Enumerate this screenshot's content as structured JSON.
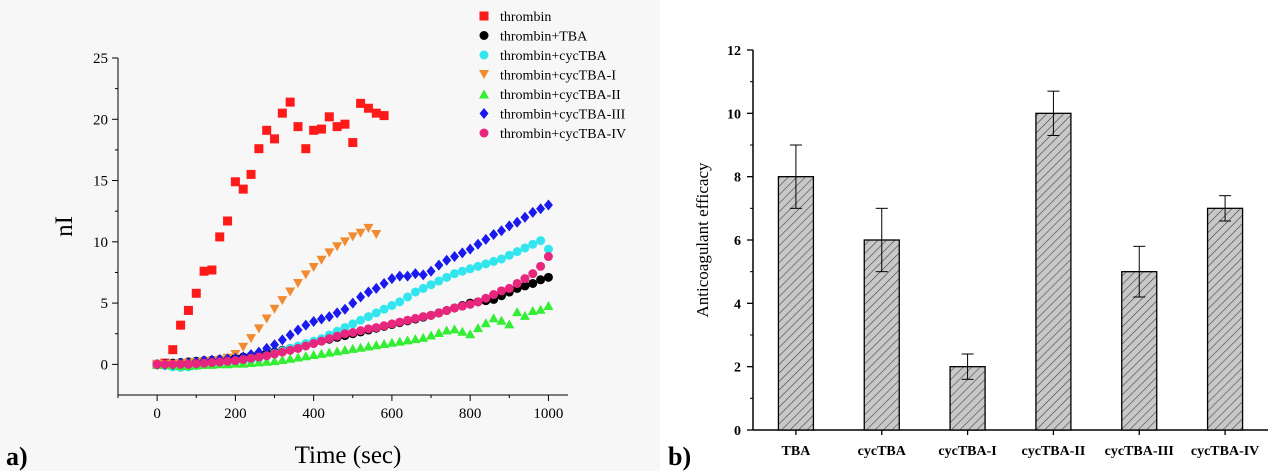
{
  "panel_labels": {
    "a": "a)",
    "b": "b)"
  },
  "chart_data": [
    {
      "type": "scatter",
      "panel": "a)",
      "xlabel": "Time (sec)",
      "ylabel": "nI",
      "xlim": [
        -100,
        1050
      ],
      "ylim": [
        -2.5,
        25
      ],
      "xticks": [
        0,
        200,
        400,
        600,
        800,
        1000
      ],
      "yticks": [
        0,
        5,
        10,
        15,
        20,
        25
      ],
      "legend_position": "top-right",
      "series": [
        {
          "name": "thrombin",
          "marker": "square",
          "color": "#ff1a1a",
          "x": [
            0,
            20,
            40,
            60,
            80,
            100,
            120,
            140,
            160,
            180,
            200,
            220,
            240,
            260,
            280,
            300,
            320,
            340,
            360,
            380,
            400,
            420,
            440,
            460,
            480,
            500,
            520,
            540,
            560,
            580
          ],
          "y": [
            0,
            0.1,
            1.2,
            3.2,
            4.4,
            5.8,
            7.6,
            7.7,
            10.4,
            11.7,
            14.9,
            14.3,
            15.5,
            17.6,
            19.1,
            18.4,
            20.5,
            21.4,
            19.4,
            17.6,
            19.1,
            19.2,
            20.2,
            19.4,
            19.6,
            18.1,
            21.3,
            20.9,
            20.5,
            20.3
          ]
        },
        {
          "name": "thrombin+TBA",
          "marker": "circle",
          "color": "#000000",
          "x": [
            0,
            20,
            40,
            60,
            80,
            100,
            120,
            140,
            160,
            180,
            200,
            220,
            240,
            260,
            280,
            300,
            320,
            340,
            360,
            380,
            400,
            420,
            440,
            460,
            480,
            500,
            520,
            540,
            560,
            580,
            600,
            620,
            640,
            660,
            680,
            700,
            720,
            740,
            760,
            780,
            800,
            820,
            840,
            860,
            880,
            900,
            920,
            940,
            960,
            980,
            1000
          ],
          "y": [
            0,
            0.05,
            0.1,
            0.15,
            0.2,
            0.25,
            0.3,
            0.35,
            0.4,
            0.45,
            0.5,
            0.6,
            0.7,
            0.8,
            0.9,
            1.0,
            1.15,
            1.3,
            1.45,
            1.6,
            1.75,
            1.9,
            2.05,
            2.2,
            2.35,
            2.5,
            2.65,
            2.8,
            2.95,
            3.1,
            3.25,
            3.4,
            3.55,
            3.7,
            3.85,
            4.0,
            4.2,
            4.4,
            4.6,
            4.8,
            5.0,
            5.1,
            5.2,
            5.3,
            5.6,
            5.9,
            6.2,
            6.4,
            6.6,
            6.9,
            7.1
          ]
        },
        {
          "name": "thrombin+cycTBA",
          "marker": "circle",
          "color": "#33e6ee",
          "x": [
            0,
            20,
            40,
            60,
            80,
            100,
            120,
            140,
            160,
            180,
            200,
            220,
            240,
            260,
            280,
            300,
            320,
            340,
            360,
            380,
            400,
            420,
            440,
            460,
            480,
            500,
            520,
            540,
            560,
            580,
            600,
            620,
            640,
            660,
            680,
            700,
            720,
            740,
            760,
            780,
            800,
            820,
            840,
            860,
            880,
            900,
            920,
            940,
            960,
            980,
            1000
          ],
          "y": [
            0,
            -0.1,
            -0.2,
            -0.25,
            -0.2,
            -0.1,
            0,
            0.05,
            0.1,
            0.15,
            0.2,
            0.3,
            0.4,
            0.5,
            0.7,
            0.9,
            1.1,
            1.3,
            1.5,
            1.7,
            1.9,
            2.1,
            2.4,
            2.7,
            3.0,
            3.3,
            3.6,
            3.9,
            4.2,
            4.5,
            4.8,
            5.1,
            5.5,
            5.9,
            6.2,
            6.5,
            6.8,
            7.1,
            7.4,
            7.6,
            7.8,
            8.0,
            8.2,
            8.4,
            8.6,
            8.9,
            9.2,
            9.5,
            9.8,
            10.1,
            9.4
          ]
        },
        {
          "name": "thrombin+cycTBA-I",
          "marker": "triangle-down",
          "color": "#f28a30",
          "x": [
            0,
            20,
            40,
            60,
            80,
            100,
            120,
            140,
            160,
            180,
            200,
            220,
            240,
            260,
            280,
            300,
            320,
            340,
            360,
            380,
            400,
            420,
            440,
            460,
            480,
            500,
            520,
            540,
            560
          ],
          "y": [
            0,
            0,
            0,
            0.05,
            0.1,
            0.15,
            0.2,
            0.25,
            0.3,
            0.5,
            0.8,
            1.4,
            2.1,
            2.9,
            3.7,
            4.5,
            5.2,
            5.9,
            6.6,
            7.3,
            7.9,
            8.5,
            9.1,
            9.6,
            10.0,
            10.4,
            10.7,
            11.1,
            10.6
          ]
        },
        {
          "name": "thrombin+cycTBA-II",
          "marker": "triangle-up",
          "color": "#33ee33",
          "x": [
            0,
            20,
            40,
            60,
            80,
            100,
            120,
            140,
            160,
            180,
            200,
            220,
            240,
            260,
            280,
            300,
            320,
            340,
            360,
            380,
            400,
            420,
            440,
            460,
            480,
            500,
            520,
            540,
            560,
            580,
            600,
            620,
            640,
            660,
            680,
            700,
            720,
            740,
            760,
            780,
            800,
            820,
            840,
            860,
            880,
            900,
            920,
            940,
            960,
            980,
            1000
          ],
          "y": [
            0,
            0,
            -0.05,
            -0.1,
            -0.1,
            -0.05,
            0,
            0,
            0.05,
            0.05,
            0.1,
            0.1,
            0.15,
            0.2,
            0.25,
            0.3,
            0.4,
            0.5,
            0.6,
            0.7,
            0.8,
            0.9,
            1.0,
            1.1,
            1.2,
            1.3,
            1.4,
            1.5,
            1.6,
            1.7,
            1.8,
            1.9,
            2.0,
            2.1,
            2.2,
            2.4,
            2.6,
            2.8,
            2.9,
            2.7,
            2.5,
            3.0,
            3.4,
            3.8,
            3.6,
            3.3,
            4.3,
            4.0,
            4.4,
            4.5,
            4.8
          ]
        },
        {
          "name": "thrombin+cycTBA-III",
          "marker": "diamond",
          "color": "#1a1aee",
          "x": [
            0,
            20,
            40,
            60,
            80,
            100,
            120,
            140,
            160,
            180,
            200,
            220,
            240,
            260,
            280,
            300,
            320,
            340,
            360,
            380,
            400,
            420,
            440,
            460,
            480,
            500,
            520,
            540,
            560,
            580,
            600,
            620,
            640,
            660,
            680,
            700,
            720,
            740,
            760,
            780,
            800,
            820,
            840,
            860,
            880,
            900,
            920,
            940,
            960,
            980,
            1000
          ],
          "y": [
            0,
            0,
            0,
            0.1,
            0.1,
            0.2,
            0.3,
            0.35,
            0.4,
            0.45,
            0.5,
            0.6,
            0.8,
            1.0,
            1.3,
            1.6,
            2.0,
            2.4,
            2.8,
            3.2,
            3.5,
            3.7,
            3.9,
            4.2,
            4.5,
            5.0,
            5.5,
            5.9,
            6.2,
            6.6,
            7.0,
            7.2,
            7.2,
            7.4,
            7.3,
            7.6,
            8.1,
            8.5,
            8.8,
            9.1,
            9.4,
            9.8,
            10.2,
            10.6,
            10.9,
            11.3,
            11.6,
            12.0,
            12.4,
            12.7,
            13.0
          ]
        },
        {
          "name": "thrombin+cycTBA-IV",
          "marker": "circle",
          "color": "#e8267d",
          "x": [
            0,
            20,
            40,
            60,
            80,
            100,
            120,
            140,
            160,
            180,
            200,
            220,
            240,
            260,
            280,
            300,
            320,
            340,
            360,
            380,
            400,
            420,
            440,
            460,
            480,
            500,
            520,
            540,
            560,
            580,
            600,
            620,
            640,
            660,
            680,
            700,
            720,
            740,
            760,
            780,
            800,
            820,
            840,
            860,
            880,
            900,
            920,
            940,
            960,
            980,
            1000
          ],
          "y": [
            0,
            0,
            0,
            0,
            0,
            0.05,
            0.1,
            0.15,
            0.2,
            0.25,
            0.3,
            0.4,
            0.5,
            0.6,
            0.7,
            0.85,
            1.0,
            1.15,
            1.3,
            1.5,
            1.7,
            1.9,
            2.1,
            2.3,
            2.5,
            2.6,
            2.75,
            2.9,
            3.0,
            3.15,
            3.3,
            3.45,
            3.6,
            3.75,
            3.9,
            4.0,
            4.2,
            4.4,
            4.6,
            4.75,
            4.9,
            5.1,
            5.4,
            5.7,
            6.0,
            6.2,
            6.6,
            7.0,
            7.4,
            8.0,
            8.8
          ]
        }
      ]
    },
    {
      "type": "bar",
      "panel": "b)",
      "xlabel": "",
      "ylabel": "Anticoagulant efficacy",
      "ylim": [
        0,
        12
      ],
      "yticks": [
        0,
        2,
        4,
        6,
        8,
        10,
        12
      ],
      "bar_fill": "hatched",
      "categories": [
        "TBA",
        "cycTBA",
        "cycTBA-I",
        "cycTBA-II",
        "cycTBA-III",
        "cycTBA-IV"
      ],
      "values": [
        8,
        6,
        2,
        10,
        5,
        7
      ],
      "errors": [
        1.0,
        1.0,
        0.4,
        0.7,
        0.8,
        0.4
      ]
    }
  ]
}
